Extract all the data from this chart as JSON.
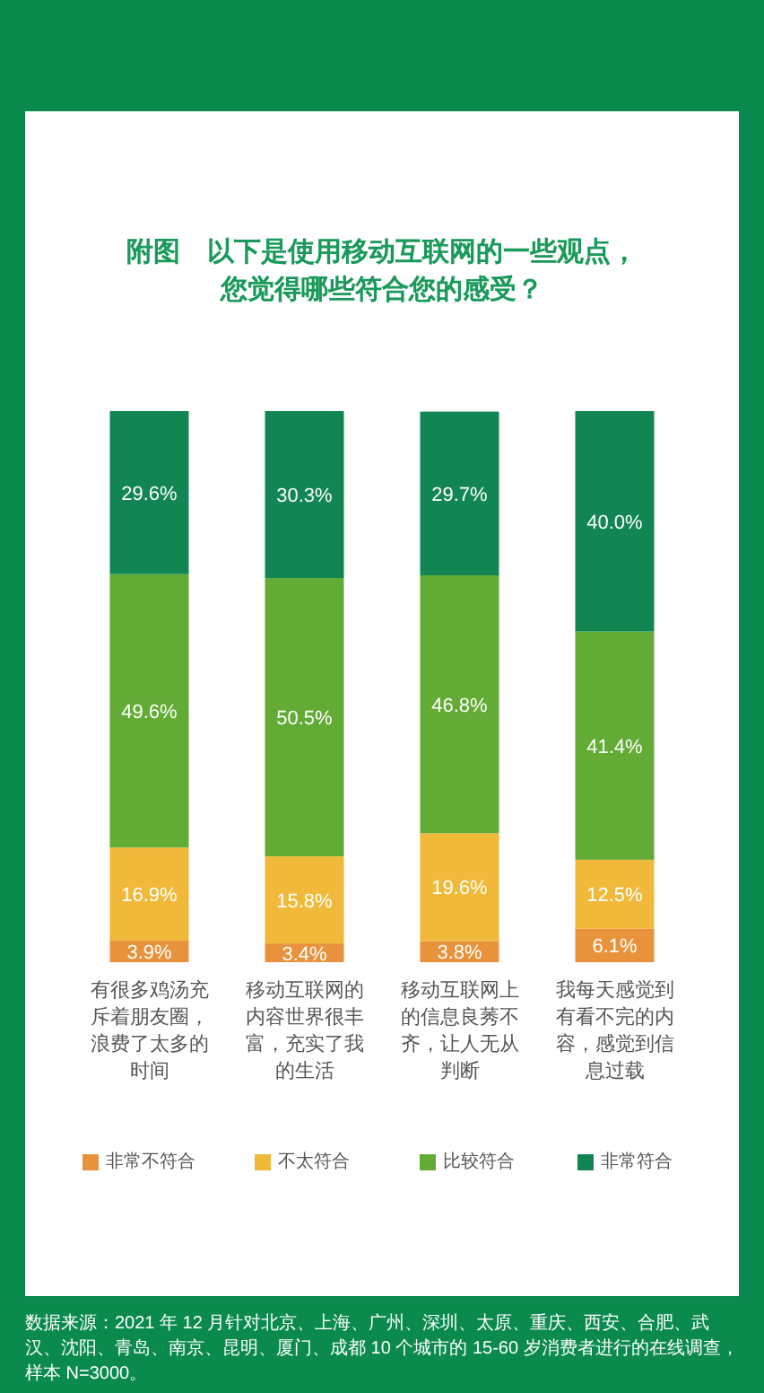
{
  "chart_data": {
    "type": "bar",
    "stacked": true,
    "legend": "bottom",
    "title": "附图　以下是使用移动互联网的一些观点，您觉得哪些符合您的感受？",
    "categories": [
      "有很多鸡汤充斥着朋友圈，浪费了太多的时间",
      "移动互联网的内容世界很丰富，充实了我的生活",
      "移动互联网上的信息良莠不齐，让人无从判断",
      "我每天感觉到有看不完的内容，感觉到信息过载"
    ],
    "series": [
      {
        "name": "非常不符合",
        "color": "#e8923c",
        "values": [
          3.9,
          3.4,
          3.8,
          6.1
        ],
        "value_labels": [
          "3.9%",
          "3.4%",
          "3.8%",
          "6.1%"
        ]
      },
      {
        "name": "不太符合",
        "color": "#f0b93a",
        "values": [
          16.9,
          15.8,
          19.6,
          12.5
        ],
        "value_labels": [
          "16.9%",
          "15.8%",
          "19.6%",
          "12.5%"
        ]
      },
      {
        "name": "比较符合",
        "color": "#62ab35",
        "values": [
          49.6,
          50.5,
          46.8,
          41.4
        ],
        "value_labels": [
          "49.6%",
          "50.5%",
          "46.8%",
          "41.4%"
        ]
      },
      {
        "name": "非常符合",
        "color": "#118552",
        "values": [
          29.6,
          30.3,
          29.7,
          40.0
        ],
        "value_labels": [
          "29.6%",
          "30.3%",
          "29.7%",
          "40.0%"
        ]
      }
    ],
    "annotations": [
      "数据来源：2021 年 12 月针对北京、上海、广州、深圳、太原、重庆、西安、合肥、武汉、沈阳、青岛、南京、昆明、厦门、成都 10 个城市的 15-60 岁消费者进行的在线调查，样本 N=3000。"
    ]
  }
}
